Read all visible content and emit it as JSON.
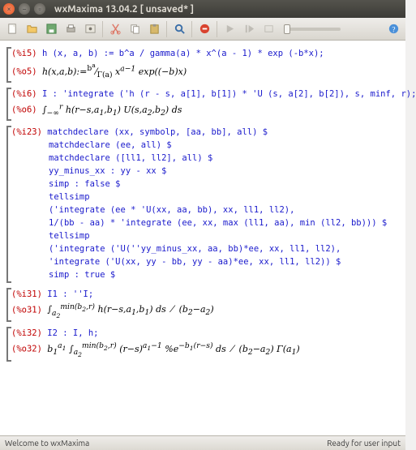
{
  "window": {
    "title": "wxMaxima 13.04.2 [ unsaved* ]"
  },
  "toolbar": {
    "zoom_pos": 0
  },
  "cells": [
    {
      "in_label": "(%i5)",
      "in_code": "h (x, a, b) := b^a / gamma(a) * x^(a - 1) * exp (-b*x);",
      "out_label": "(%o5)",
      "out_math": "h(x,a,b):=<span class='up'><sup>b<sup>a</sup></sup>⁄<sub>Γ(a)</sub></span> x<sup>a−1</sup> exp((−b)x)"
    },
    {
      "in_label": "(%i6)",
      "in_code": "I : 'integrate ('h (r - s, a[1], b[1]) * 'U (s, a[2], b[2]), s, minf, r);",
      "out_label": "(%o6)",
      "out_math": "∫<sub>−∞</sub><sup>r</sup> h(r−s,a<sub>1</sub>,b<sub>1</sub>) U(s,a<sub>2</sub>,b<sub>2</sub>) ds"
    },
    {
      "in_label": "(%i23)",
      "multi": [
        "matchdeclare (xx, symbolp, [aa, bb], all) $",
        "matchdeclare (ee, all) $",
        "matchdeclare ([ll1, ll2], all) $",
        "yy_minus_xx : yy - xx $",
        "simp : false $",
        "tellsimp",
        "('integrate (ee * 'U(xx, aa, bb), xx, ll1, ll2),",
        "1/(bb - aa) * 'integrate (ee, xx, max (ll1, aa), min (ll2, bb))) $",
        "tellsimp",
        "('integrate ('U(''yy_minus_xx, aa, bb)*ee, xx, ll1, ll2),",
        "'integrate ('U(xx, yy - bb, yy - aa)*ee, xx, ll1, ll2)) $",
        "simp : true $"
      ]
    },
    {
      "in_label": "(%i31)",
      "in_code": "I1 : ''I;",
      "out_label": "(%o31)",
      "out_math": "∫<sub>a<sub>2</sub></sub><sup>min(b<sub>2</sub>,r)</sup> h(r−s,a<sub>1</sub>,b<sub>1</sub>) ds &nbsp;⁄&nbsp; (b<sub>2</sub>−a<sub>2</sub>)"
    },
    {
      "in_label": "(%i32)",
      "in_code": "I2 : I, h;",
      "out_label": "(%o32)",
      "out_math": "b<sub>1</sub><sup>a<sub>1</sub></sup> ∫<sub>a<sub>2</sub></sub><sup>min(b<sub>2</sub>,r)</sup> (r−s)<sup>a<sub>1</sub>−1</sup> %e<sup>−b<sub>1</sub>(r−s)</sup> ds &nbsp;⁄&nbsp; (b<sub>2</sub>−a<sub>2</sub>) Γ(a<sub>1</sub>)"
    }
  ],
  "status": {
    "left": "Welcome to wxMaxima",
    "right": "Ready for user input"
  }
}
